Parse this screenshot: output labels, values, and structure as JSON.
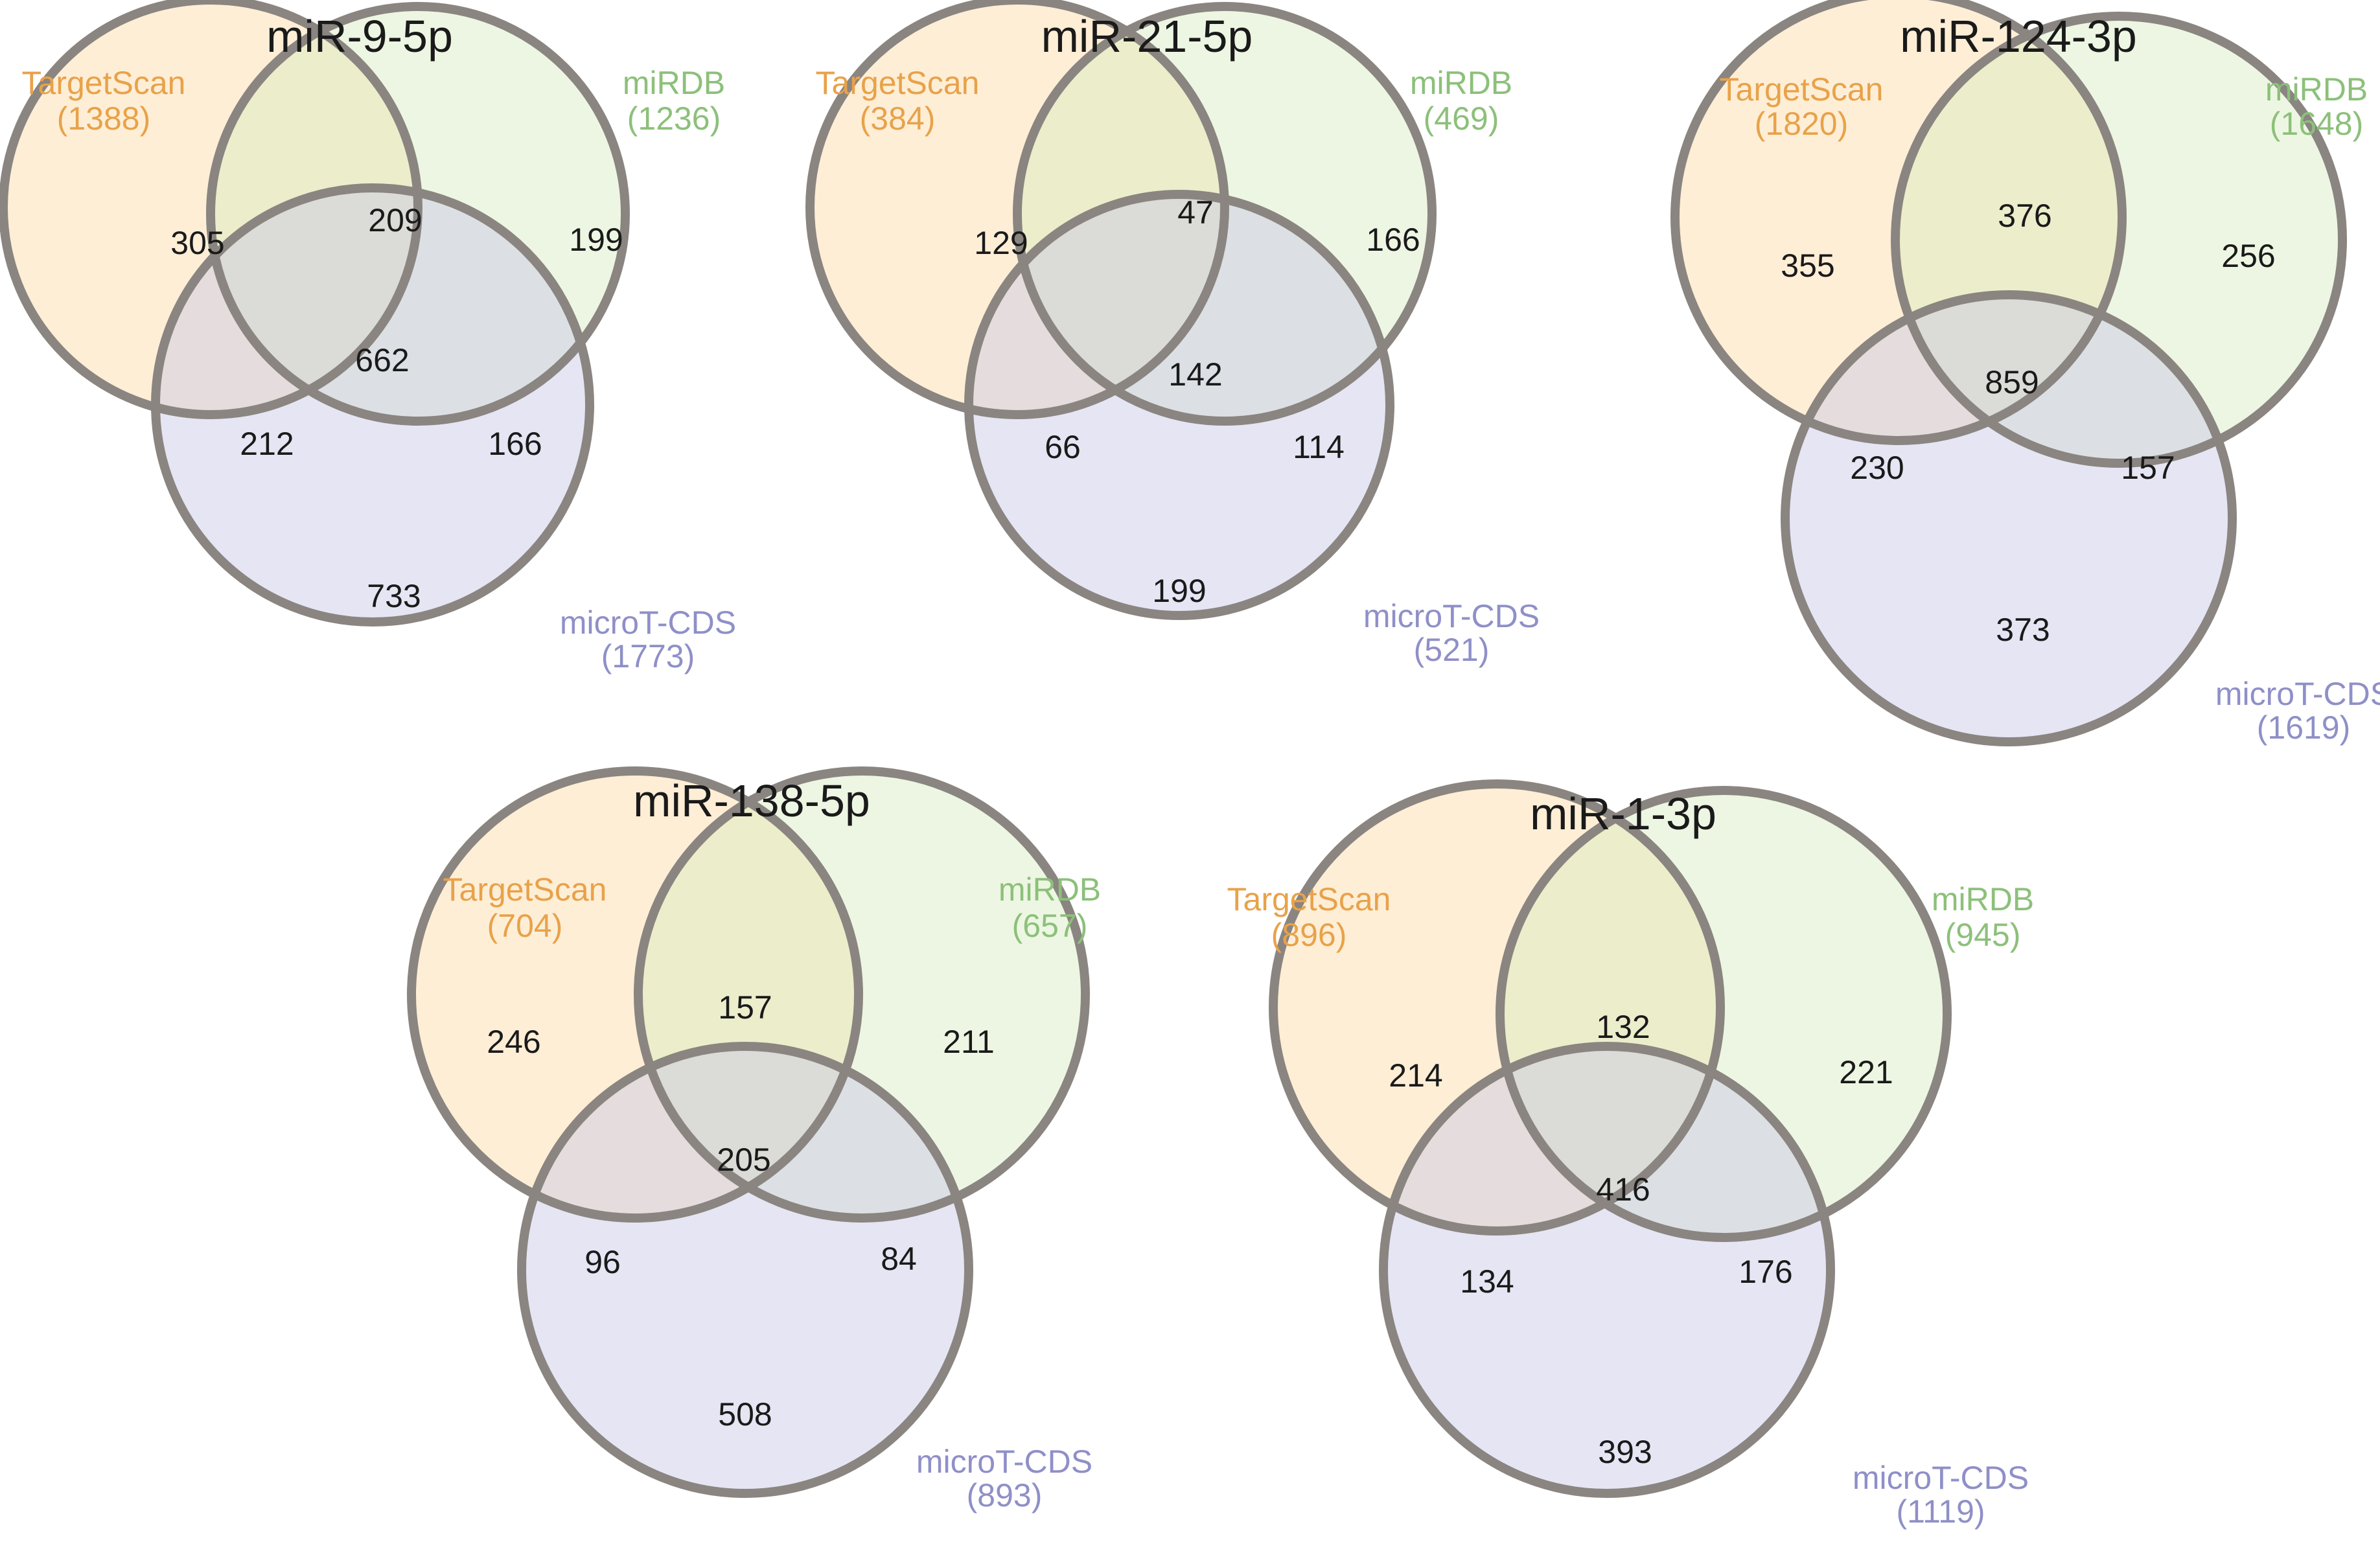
{
  "colors": {
    "targetscan": "#e8a24a",
    "mirdb": "#8cc07a",
    "microt": "#8f8fc8",
    "targetscan_fill": "#fdd9a3",
    "mirdb_fill": "#d7ebbf",
    "microt_fill": "#c7c6e6",
    "outline": "#8a8580"
  },
  "diagrams": [
    {
      "title": "miR-9-5p",
      "targetscan": {
        "name": "TargetScan",
        "total": "(1388)"
      },
      "mirdb": {
        "name": "miRDB",
        "total": "(1236)"
      },
      "microt": {
        "name": "microT-CDS",
        "total": "(1773)"
      },
      "regions": {
        "ts_only": "305",
        "ts_mirdb": "209",
        "mirdb_only": "199",
        "all": "662",
        "ts_microt": "212",
        "mirdb_microt": "166",
        "microt_only": "733"
      }
    },
    {
      "title": "miR-21-5p",
      "targetscan": {
        "name": "TargetScan",
        "total": "(384)"
      },
      "mirdb": {
        "name": "miRDB",
        "total": "(469)"
      },
      "microt": {
        "name": "microT-CDS",
        "total": "(521)"
      },
      "regions": {
        "ts_only": "129",
        "ts_mirdb": "47",
        "mirdb_only": "166",
        "all": "142",
        "ts_microt": "66",
        "mirdb_microt": "114",
        "microt_only": "199"
      }
    },
    {
      "title": "miR-124-3p",
      "targetscan": {
        "name": "TargetScan",
        "total": "(1820)"
      },
      "mirdb": {
        "name": "miRDB",
        "total": "(1648)"
      },
      "microt": {
        "name": "microT-CDS",
        "total": "(1619)"
      },
      "regions": {
        "ts_only": "355",
        "ts_mirdb": "376",
        "mirdb_only": "256",
        "all": "859",
        "ts_microt": "230",
        "mirdb_microt": "157",
        "microt_only": "373"
      }
    },
    {
      "title": "miR-138-5p",
      "targetscan": {
        "name": "TargetScan",
        "total": "(704)"
      },
      "mirdb": {
        "name": "miRDB",
        "total": "(657)"
      },
      "microt": {
        "name": "microT-CDS",
        "total": "(893)"
      },
      "regions": {
        "ts_only": "246",
        "ts_mirdb": "157",
        "mirdb_only": "211",
        "all": "205",
        "ts_microt": "96",
        "mirdb_microt": "84",
        "microt_only": "508"
      }
    },
    {
      "title": "miR-1-3p",
      "targetscan": {
        "name": "TargetScan",
        "total": "(896)"
      },
      "mirdb": {
        "name": "miRDB",
        "total": "(945)"
      },
      "microt": {
        "name": "microT-CDS",
        "total": "(1119)"
      },
      "regions": {
        "ts_only": "214",
        "ts_mirdb": "132",
        "mirdb_only": "221",
        "all": "416",
        "ts_microt": "134",
        "mirdb_microt": "176",
        "microt_only": "393"
      }
    }
  ]
}
